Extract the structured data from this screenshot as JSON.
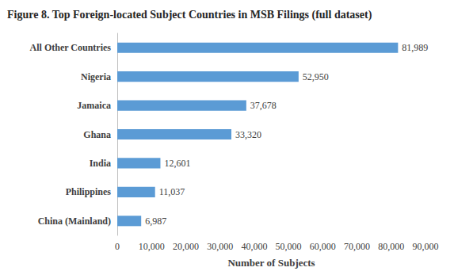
{
  "chart_data": {
    "type": "bar",
    "orientation": "horizontal",
    "title": "Figure 8. Top Foreign-located Subject Countries in MSB Filings (full dataset)",
    "xlabel": "Number of Subjects",
    "categories": [
      "All Other Countries",
      "Nigeria",
      "Jamaica",
      "Ghana",
      "India",
      "Philippines",
      "China (Mainland)"
    ],
    "values": [
      81989,
      52950,
      37678,
      33320,
      12601,
      11037,
      6987
    ],
    "value_labels": [
      "81,989",
      "52,950",
      "37,678",
      "33,320",
      "12,601",
      "11,037",
      "6,987"
    ],
    "data_labels": true,
    "color": "#5b9bd5",
    "xlim": [
      0,
      90000
    ],
    "xticks": [
      0,
      {
        "value": 10000,
        "label": "10,000"
      },
      {
        "value": 20000,
        "label": "20,000"
      },
      {
        "value": 30000,
        "label": "30,000"
      },
      {
        "value": 40000,
        "label": "40,000"
      },
      {
        "value": 50000,
        "label": "50,000"
      },
      {
        "value": 60000,
        "label": "60,000"
      },
      {
        "value": 70000,
        "label": "70,000"
      },
      {
        "value": 80000,
        "label": "80,000"
      },
      {
        "value": 90000,
        "label": "90,000"
      }
    ],
    "grid": false
  }
}
